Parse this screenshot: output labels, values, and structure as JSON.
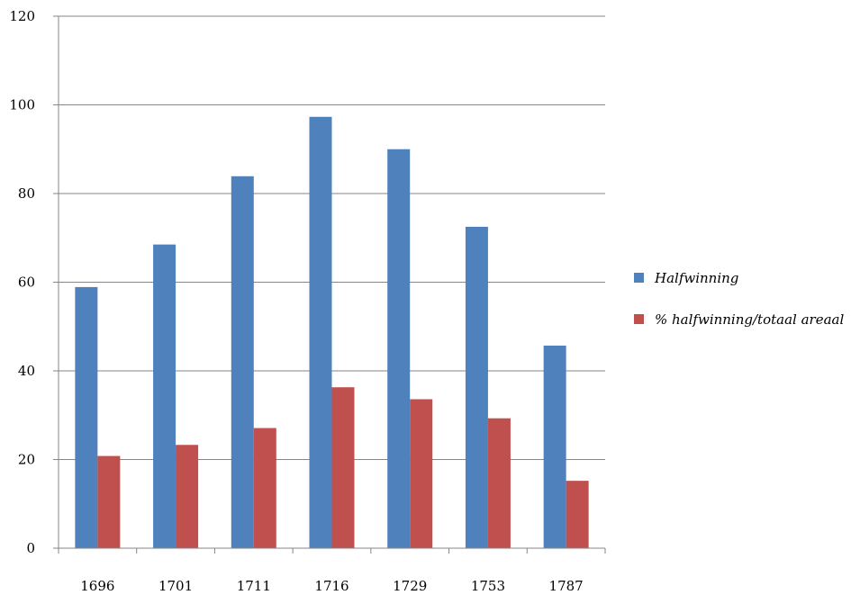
{
  "chart_data": {
    "type": "bar",
    "categories": [
      "1696",
      "1701",
      "1711",
      "1716",
      "1729",
      "1753",
      "1787"
    ],
    "series": [
      {
        "name": "Halfwinning",
        "color": "#4f81bd",
        "values": [
          58.9,
          68.5,
          83.9,
          97.3,
          90.0,
          72.5,
          45.7
        ]
      },
      {
        "name": "% halfwinning/totaal areaal",
        "color": "#c0504d",
        "values": [
          20.8,
          23.3,
          27.1,
          36.3,
          33.6,
          29.3,
          15.2
        ]
      }
    ],
    "ylim": [
      0,
      120
    ],
    "yticks": [
      0,
      20,
      40,
      60,
      80,
      100,
      120
    ],
    "grid": true,
    "legend_position": "right"
  }
}
